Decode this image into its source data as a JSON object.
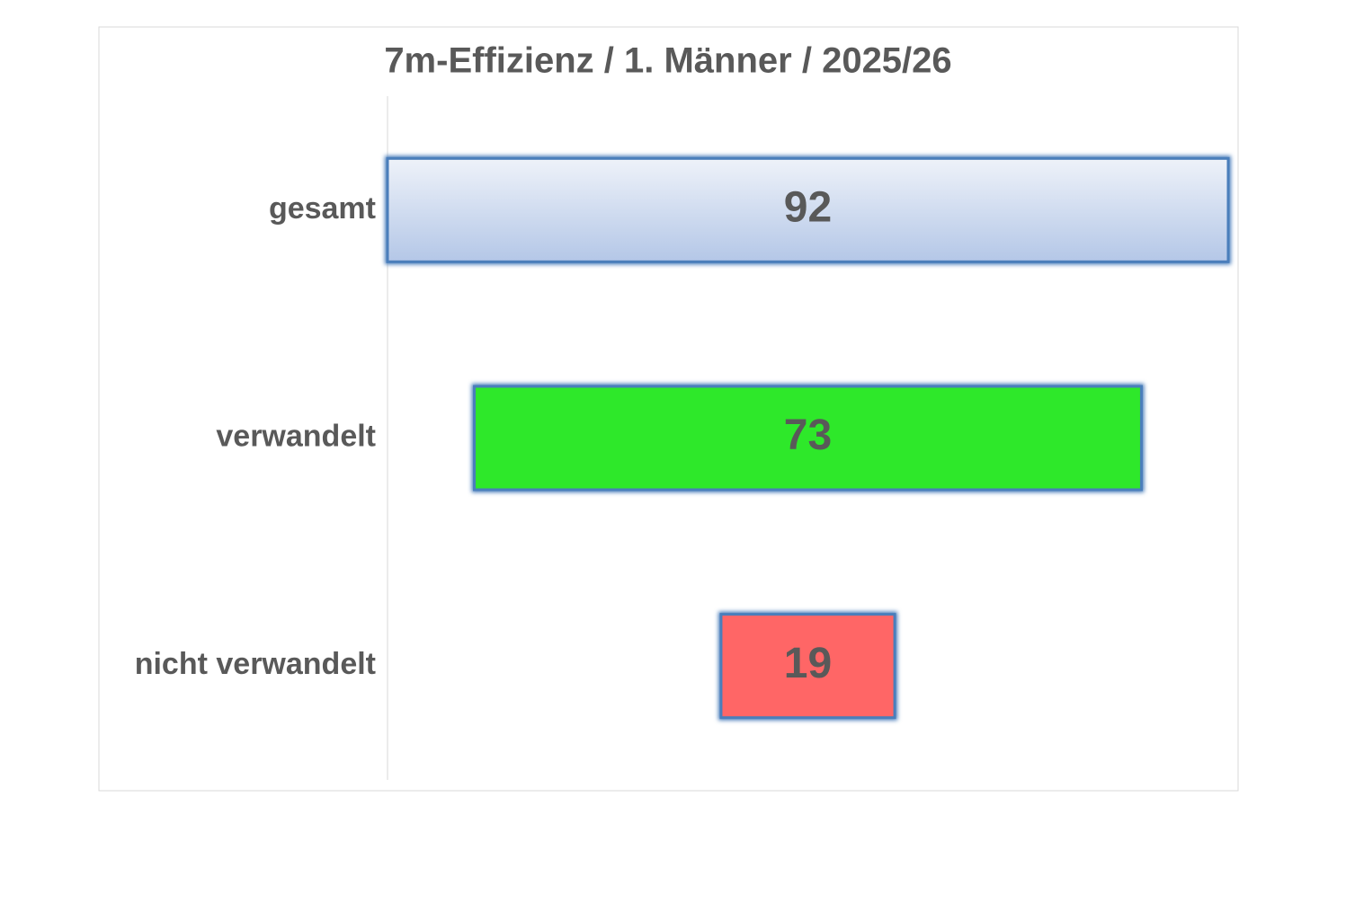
{
  "chart_data": {
    "type": "funnel",
    "title": "7m-Effizienz / 1. Männer / 2025/26",
    "categories": [
      "gesamt",
      "verwandelt",
      "nicht verwandelt"
    ],
    "values": [
      92,
      73,
      19
    ],
    "colors": [
      "#b4c7e7",
      "#2ee82a",
      "#ff6666"
    ]
  }
}
